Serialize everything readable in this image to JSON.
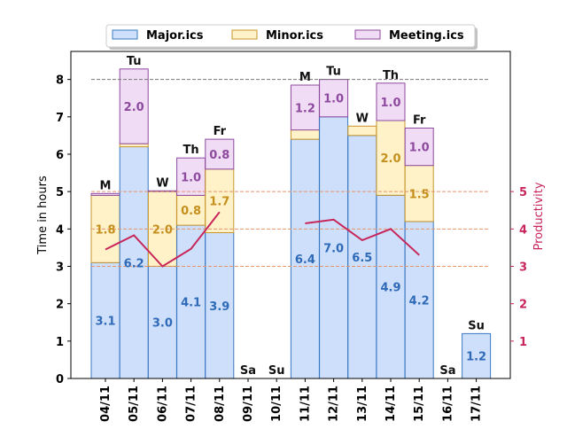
{
  "chart_data": {
    "type": "bar",
    "stacked": true,
    "categories": [
      "04/11",
      "05/11",
      "06/11",
      "07/11",
      "08/11",
      "09/11",
      "10/11",
      "11/11",
      "12/11",
      "13/11",
      "14/11",
      "15/11",
      "16/11",
      "17/11"
    ],
    "day_labels": [
      "M",
      "Tu",
      "W",
      "Th",
      "Fr",
      "Sa",
      "Su",
      "M",
      "Tu",
      "W",
      "Th",
      "Fr",
      "Sa",
      "Su"
    ],
    "series": [
      {
        "name": "Major.ics",
        "fill": "#cddffa",
        "stroke": "#3a78c2",
        "label_color": "#2f6ab8",
        "values": [
          3.1,
          6.2,
          3.0,
          4.1,
          3.9,
          0,
          0,
          6.4,
          7.0,
          6.5,
          4.9,
          4.2,
          0,
          1.2
        ],
        "labels": [
          "3.1",
          "6.2",
          "3.0",
          "4.1",
          "3.9",
          "",
          "",
          "6.4",
          "7.0",
          "6.5",
          "4.9",
          "4.2",
          "",
          "1.2"
        ]
      },
      {
        "name": "Minor.ics",
        "fill": "#fff2c9",
        "stroke": "#c8962c",
        "label_color": "#c58f1e",
        "values": [
          1.8,
          0.08,
          2.0,
          0.8,
          1.7,
          0,
          0,
          0.25,
          0,
          0.25,
          2.0,
          1.5,
          0,
          0
        ],
        "labels": [
          "1.8",
          "",
          "2.0",
          "0.8",
          "1.7",
          "",
          "",
          "",
          "",
          "",
          "2.0",
          "1.5",
          "",
          ""
        ]
      },
      {
        "name": "Meeting.ics",
        "fill": "#f1dcf5",
        "stroke": "#8d4a9e",
        "label_color": "#8d4a9e",
        "values": [
          0.05,
          2.0,
          0.02,
          1.0,
          0.8,
          0,
          0,
          1.2,
          1.0,
          0,
          1.0,
          1.0,
          0,
          0
        ],
        "labels": [
          "",
          "2.0",
          "",
          "1.0",
          "0.8",
          "",
          "",
          "1.2",
          "1.0",
          "",
          "1.0",
          "1.0",
          "",
          ""
        ]
      }
    ],
    "productivity": {
      "color": "#c8265a",
      "values": [
        3.45,
        3.83,
        3.0,
        3.47,
        4.45,
        null,
        null,
        4.15,
        4.25,
        3.7,
        4.0,
        3.3,
        null,
        null
      ]
    },
    "reference_lines": {
      "hours": 8,
      "productivity": [
        3,
        4,
        5
      ]
    },
    "ylabel": "Time in hours",
    "ylabel_right": "Productivity",
    "ylim": [
      0,
      8.75
    ],
    "yticks": [
      0,
      1,
      2,
      3,
      4,
      5,
      6,
      7,
      8
    ],
    "right_yticks": [
      1,
      2,
      3,
      4,
      5
    ],
    "legend_position": "top-center",
    "grid": false
  }
}
